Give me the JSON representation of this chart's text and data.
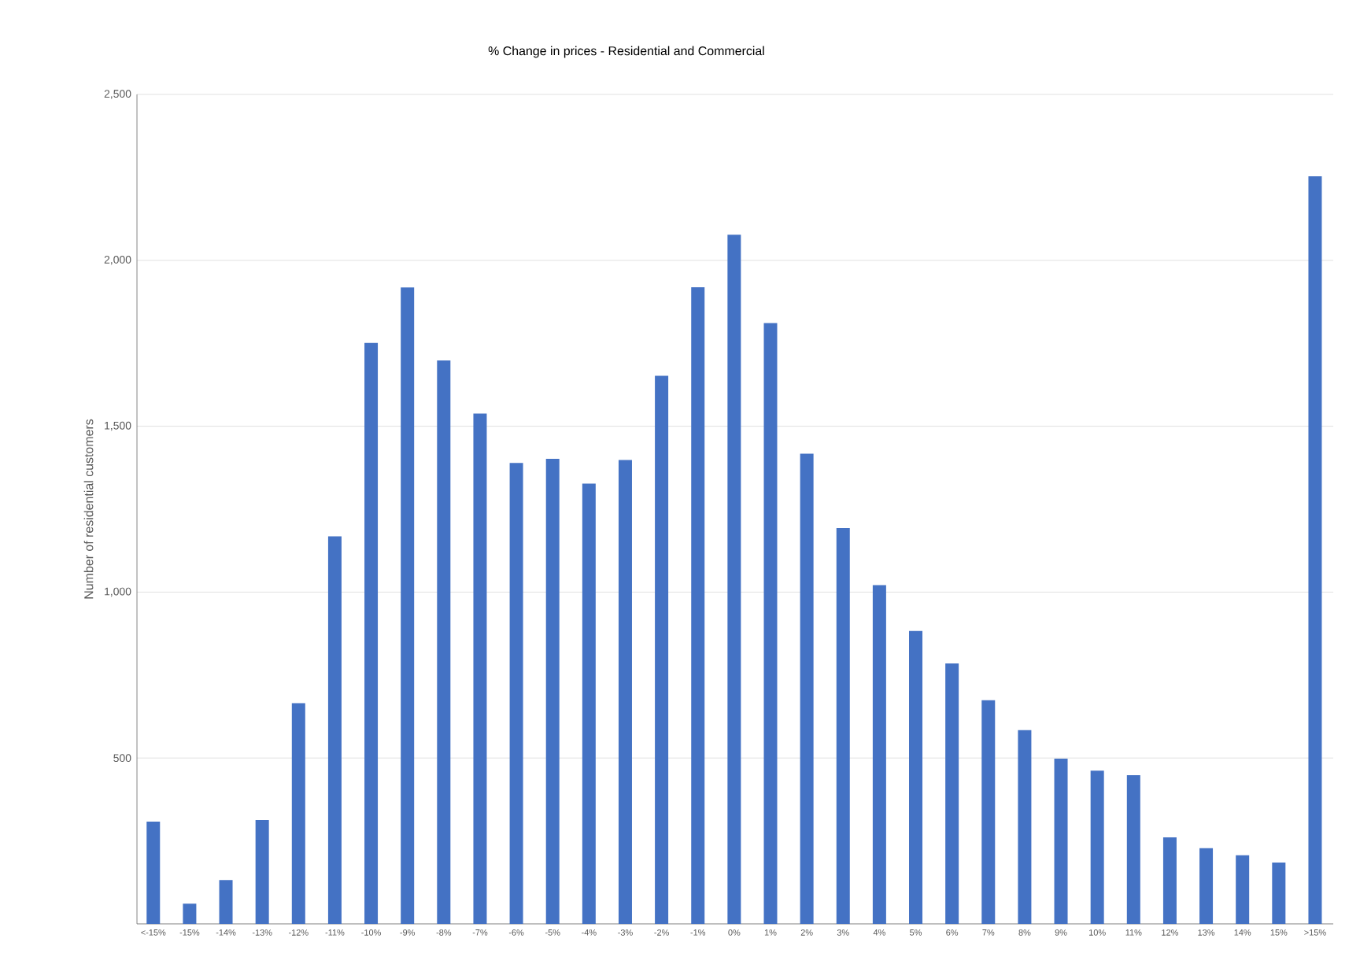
{
  "chart_data": {
    "type": "bar",
    "title": "% Change in prices - Residential and Commercial",
    "ylabel": "Number of residential customers",
    "categories": [
      "<-15%",
      "-15%",
      "-14%",
      "-13%",
      "-12%",
      "-11%",
      "-10%",
      "-9%",
      "-8%",
      "-7%",
      "-6%",
      "-5%",
      "-4%",
      "-3%",
      "-2%",
      "-1%",
      "0%",
      "1%",
      "2%",
      "3%",
      "4%",
      "5%",
      "6%",
      "7%",
      "8%",
      "9%",
      "10%",
      "11%",
      "12%",
      "13%",
      "14%",
      "15%",
      ">15%"
    ],
    "values": [
      308,
      61,
      132,
      313,
      665,
      1168,
      1751,
      1918,
      1698,
      1538,
      1389,
      1402,
      1327,
      1398,
      1652,
      1919,
      2077,
      1811,
      1417,
      1193,
      1021,
      883,
      785,
      674,
      584,
      498,
      462,
      448,
      261,
      228,
      207,
      185,
      2253
    ],
    "color": "#4472c4",
    "ylim": [
      0,
      2500
    ],
    "yticks": [
      500,
      {
        "value": 1000,
        "label": "1,000"
      },
      {
        "value": 1500,
        "label": "1,500"
      },
      {
        "value": 2000,
        "label": "2,000"
      },
      {
        "value": 2500,
        "label": "2,500"
      }
    ],
    "grid": "y"
  }
}
